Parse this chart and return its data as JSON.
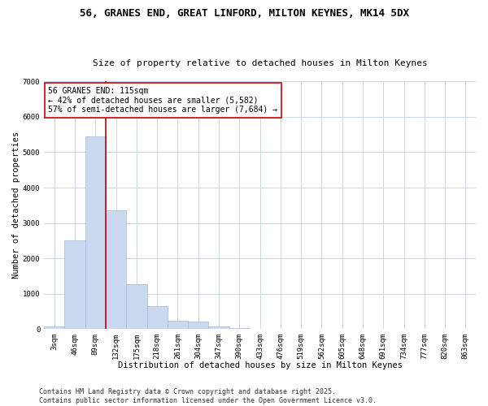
{
  "title1": "56, GRANES END, GREAT LINFORD, MILTON KEYNES, MK14 5DX",
  "title2": "Size of property relative to detached houses in Milton Keynes",
  "xlabel": "Distribution of detached houses by size in Milton Keynes",
  "ylabel": "Number of detached properties",
  "categories": [
    "3sqm",
    "46sqm",
    "89sqm",
    "132sqm",
    "175sqm",
    "218sqm",
    "261sqm",
    "304sqm",
    "347sqm",
    "390sqm",
    "433sqm",
    "476sqm",
    "519sqm",
    "562sqm",
    "605sqm",
    "648sqm",
    "691sqm",
    "734sqm",
    "777sqm",
    "820sqm",
    "863sqm"
  ],
  "values": [
    80,
    2500,
    5450,
    3350,
    1270,
    650,
    230,
    200,
    70,
    25,
    10,
    5,
    2,
    1,
    0,
    0,
    0,
    0,
    0,
    0,
    0
  ],
  "bar_color": "#c9d9f0",
  "bar_edge_color": "#a0b8d8",
  "vline_x_index": 2.5,
  "vline_color": "#cc0000",
  "annotation_text": "56 GRANES END: 115sqm\n← 42% of detached houses are smaller (5,582)\n57% of semi-detached houses are larger (7,684) →",
  "annotation_box_color": "#ffffff",
  "annotation_box_edge": "#cc0000",
  "ylim": [
    0,
    7000
  ],
  "yticks": [
    0,
    1000,
    2000,
    3000,
    4000,
    5000,
    6000,
    7000
  ],
  "background_color": "#ffffff",
  "grid_color": "#c8d8e8",
  "footer1": "Contains HM Land Registry data © Crown copyright and database right 2025.",
  "footer2": "Contains public sector information licensed under the Open Government Licence v3.0.",
  "title_fontsize": 9,
  "subtitle_fontsize": 8,
  "axis_label_fontsize": 7.5,
  "tick_fontsize": 6.5,
  "annotation_fontsize": 7,
  "footer_fontsize": 6
}
